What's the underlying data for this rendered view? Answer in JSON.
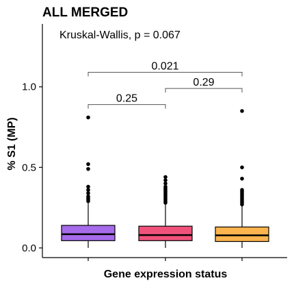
{
  "chart_data": {
    "type": "box",
    "title": "ALL MERGED",
    "annotation": "Kruskal-Wallis, p = 0.067",
    "xlabel": "Gene expression status",
    "ylabel": "% S1 (MP)",
    "ylim": [
      -0.06,
      1.39
    ],
    "yticks": [
      0.0,
      0.5,
      1.0
    ],
    "ytick_labels": [
      "0.0",
      "0.5",
      "1.0"
    ],
    "grid": false,
    "legend": "none",
    "categories": [
      "",
      "",
      ""
    ],
    "boxes": [
      {
        "color": "#A66BEA",
        "q1": 0.045,
        "median": 0.085,
        "q3": 0.14,
        "whisker_low": 0.0,
        "whisker_high": 0.28,
        "outliers": [
          0.81,
          0.52,
          0.49,
          0.38,
          0.36,
          0.34,
          0.32,
          0.31,
          0.3,
          0.29
        ]
      },
      {
        "color": "#F0527A",
        "q1": 0.045,
        "median": 0.08,
        "q3": 0.135,
        "whisker_low": 0.0,
        "whisker_high": 0.27,
        "outliers": [
          0.44,
          0.42,
          0.4,
          0.38,
          0.37,
          0.36,
          0.35,
          0.34,
          0.33,
          0.32,
          0.31,
          0.3,
          0.29,
          0.28
        ]
      },
      {
        "color": "#FDB44E",
        "q1": 0.04,
        "median": 0.078,
        "q3": 0.13,
        "whisker_low": 0.0,
        "whisker_high": 0.26,
        "outliers": [
          0.85,
          0.5,
          0.43,
          0.36,
          0.35,
          0.34,
          0.33,
          0.32,
          0.31,
          0.3,
          0.29,
          0.28,
          0.27
        ]
      }
    ],
    "comparisons": [
      {
        "from": 0,
        "to": 1,
        "y": 0.89,
        "label": "0.25"
      },
      {
        "from": 1,
        "to": 2,
        "y": 0.99,
        "label": "0.29"
      },
      {
        "from": 0,
        "to": 2,
        "y": 1.09,
        "label": "0.021"
      }
    ]
  }
}
